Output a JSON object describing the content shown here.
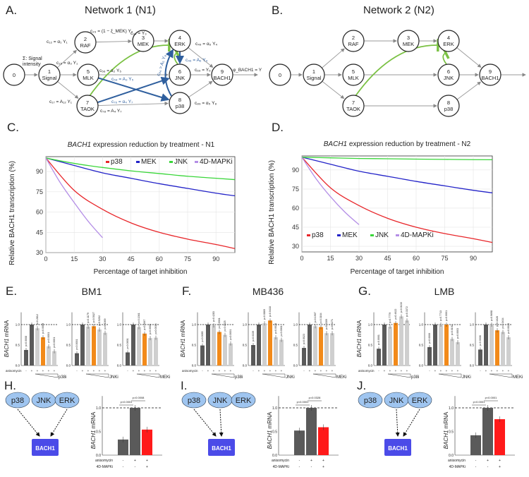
{
  "colors": {
    "p38": "#e8262a",
    "MEK": "#2323c8",
    "JNK": "#3ad63a",
    "4D-MAPKi": "#b48ee6",
    "activating_edge": "#2f5f9e",
    "inhibiting_edge": "#7ac143",
    "control_bar": "#5a5a5a",
    "inhibitor_bar": "#cfcfcf",
    "mid_dose_bar": "#f28a1a",
    "combo_bar": "#ff1a1a",
    "node_fill": "#9fc5f0",
    "bach1_box": "#4b4be8",
    "sig_p": "#e8262a",
    "nonsig_p": "#666666"
  },
  "panelA": {
    "label": "A.",
    "title": "Network 1 (N1)",
    "nodes": [
      {
        "id": "0",
        "name": ""
      },
      {
        "id": "1",
        "name": "Signal"
      },
      {
        "id": "2",
        "name": "RAF"
      },
      {
        "id": "3",
        "name": "MEK"
      },
      {
        "id": "4",
        "name": "ERK"
      },
      {
        "id": "5",
        "name": "MLK"
      },
      {
        "id": "6",
        "name": "JNK"
      },
      {
        "id": "7",
        "name": "TAOK"
      },
      {
        "id": "8",
        "name": "p38"
      },
      {
        "id": "9",
        "name": "BACH1"
      }
    ],
    "signal_label": [
      "Σ: Signal",
      "intensity"
    ],
    "edge_labels": {
      "c12": "c₁₂ = α₁ Y₁",
      "c23": "c₂₃ = (1 − ξ_MEK) Y₂",
      "c34": "c₃₄ = Y₃",
      "c49": "c₄₉ = α₆ Y₄",
      "c15": "c₁₅ = α₃ Y₁",
      "c56": "c₅₆ = α₂ Y₅",
      "c58": "c₅₈ = A₃ Y₅",
      "c46": "c₄₆ = A₆ Y₄",
      "c84": "c₈₄ = A₅ Y₈",
      "c69": "c₆₉ = Y₆",
      "phi": "φ_BACH1 = Y",
      "c17": "c₁₇ = A₁₂ Y₁",
      "c76": "c₇₆ = α₄ Y₇",
      "c78": "c₇₈ = A₄ Y₇",
      "c89": "c₈₉ = α₅ Y₈"
    }
  },
  "panelB": {
    "label": "B.",
    "title": "Network 2 (N2)"
  },
  "chart_data": [
    {
      "id": "C",
      "panel_label": "C.",
      "type": "line",
      "title": "BACH1 expression reduction by treatment - N1",
      "title_italic": "BACH1",
      "title_rest": " expression reduction by treatment - N1",
      "xlabel": "Percentage of target inhibition",
      "ylabel": "Relative BACH1 transcription (%)",
      "xlim": [
        0,
        100
      ],
      "ylim": [
        30,
        101
      ],
      "xticks": [
        "0",
        "15",
        "30",
        "45",
        "60",
        "75",
        "90"
      ],
      "yticks": [
        "30",
        "45",
        "60",
        "75",
        "90"
      ],
      "grid": true,
      "legend": "top-right",
      "series": [
        {
          "name": "p38",
          "x": [
            0,
            15,
            30,
            45,
            60,
            75,
            90,
            100
          ],
          "y": [
            100,
            76,
            62,
            52,
            45,
            40,
            36,
            33
          ]
        },
        {
          "name": "MEK",
          "x": [
            0,
            15,
            30,
            45,
            60,
            75,
            90,
            100
          ],
          "y": [
            100,
            94.5,
            89,
            85,
            81,
            77.5,
            74,
            72
          ]
        },
        {
          "name": "JNK",
          "x": [
            0,
            15,
            30,
            45,
            60,
            75,
            90,
            100
          ],
          "y": [
            100,
            96,
            93,
            90.5,
            88.5,
            86.5,
            85,
            84
          ]
        },
        {
          "name": "4D-MAPKi",
          "x": [
            0,
            7.5,
            15,
            22.5,
            30
          ],
          "y": [
            100,
            82,
            67,
            53,
            41
          ]
        }
      ]
    },
    {
      "id": "D",
      "panel_label": "D.",
      "type": "line",
      "title": "BACH1 expression reduction by treatment - N2",
      "title_italic": "BACH1",
      "title_rest": " expression reduction by treatment - N2",
      "xlabel": "Percentage of target inhibition",
      "ylabel": "Relative BACH1 transcription (%)",
      "xlim": [
        0,
        100
      ],
      "ylim": [
        25.6,
        101
      ],
      "xticks": [
        "0",
        "15",
        "30",
        "45",
        "60",
        "75",
        "90"
      ],
      "yticks": [
        "30",
        "45",
        "60",
        "75",
        "90"
      ],
      "grid": true,
      "legend": "bottom-left",
      "series": [
        {
          "name": "p38",
          "x": [
            0,
            15,
            30,
            45,
            60,
            75,
            90,
            100
          ],
          "y": [
            100,
            76,
            62,
            52,
            45,
            40,
            36,
            33
          ]
        },
        {
          "name": "MEK",
          "x": [
            0,
            15,
            30,
            45,
            60,
            75,
            90,
            100
          ],
          "y": [
            100,
            94.5,
            89,
            85,
            81,
            77.5,
            74,
            72
          ]
        },
        {
          "name": "JNK",
          "x": [
            0,
            15,
            30,
            45,
            60,
            75,
            90,
            100
          ],
          "y": [
            100,
            99.5,
            99,
            98.8,
            98.5,
            98.3,
            98.1,
            98
          ]
        },
        {
          "name": "4D-MAPKi",
          "x": [
            0,
            7.5,
            15,
            22.5,
            30
          ],
          "y": [
            100,
            83,
            69,
            57,
            47
          ]
        }
      ]
    }
  ],
  "bar_panels": [
    {
      "label": "E.",
      "cell_line": "BM1",
      "ylabel_italic": "BACH1",
      "ylabel_rest": " mRNA",
      "groups": [
        {
          "inhibitor": "p38i",
          "values": [
            0.38,
            1.0,
            0.91,
            0.69,
            0.47,
            0.35
          ],
          "pvalues": [
            "p=0.0008",
            "",
            "p=0.2812",
            "p=0.0069",
            "p<0.0001",
            "p<0.0001"
          ],
          "sig": [
            1,
            0,
            0,
            1,
            1,
            1
          ]
        },
        {
          "inhibitor": "JNKi",
          "values": [
            0.3,
            1.0,
            0.95,
            0.96,
            0.88,
            0.8
          ],
          "pvalues": [
            "p<0.0001",
            "",
            "p=0.1179",
            "p=0.5027",
            "p=0.5202",
            "p=0.1069"
          ],
          "sig": [
            1,
            0,
            0,
            0,
            0,
            0
          ]
        },
        {
          "inhibitor": "MEKi",
          "values": [
            0.32,
            1.0,
            0.94,
            0.78,
            0.67,
            0.68
          ],
          "pvalues": [
            "p<0.0001",
            "",
            "p=0.1361",
            "p=0.0067",
            "p=0.0008",
            "p=0.0013"
          ],
          "sig": [
            1,
            0,
            0,
            1,
            1,
            1
          ]
        }
      ]
    },
    {
      "label": "F.",
      "cell_line": "MB436",
      "ylabel_italic": "BACH1",
      "ylabel_rest": " mRNA",
      "groups": [
        {
          "inhibitor": "p38i",
          "values": [
            0.49,
            1.0,
            0.98,
            0.82,
            0.75,
            0.54
          ],
          "pvalues": [
            "p=0.0085",
            "",
            "p=0.4283",
            "p=0.0001",
            "p=0.0025",
            "p=0.0001"
          ],
          "sig": [
            1,
            0,
            0,
            1,
            1,
            1
          ]
        },
        {
          "inhibitor": "JNKi",
          "values": [
            0.5,
            1.0,
            1.03,
            1.1,
            0.69,
            0.63
          ],
          "pvalues": [
            "p=0.0339",
            "",
            "p=0.0869",
            "p=0.0418",
            "p=0.0026",
            "p=0.0061"
          ],
          "sig": [
            1,
            0,
            0,
            1,
            1,
            1
          ]
        },
        {
          "inhibitor": "MEKi",
          "values": [
            0.43,
            1.0,
            0.96,
            0.94,
            0.79,
            0.79
          ],
          "pvalues": [
            "p=0.0023",
            "",
            "p=0.1907",
            "p=0.3164",
            "p=0.0309",
            "p=0.0271"
          ],
          "sig": [
            1,
            0,
            0,
            0,
            1,
            1
          ]
        }
      ]
    },
    {
      "label": "G.",
      "cell_line": "LMB",
      "ylabel_italic": "BACH1",
      "ylabel_rest": " mRNA",
      "groups": [
        {
          "inhibitor": "p38i",
          "values": [
            0.41,
            1.0,
            0.95,
            1.04,
            1.2,
            1.1
          ],
          "pvalues": [
            "p=0.0001",
            "",
            "p=0.7779",
            "p=0.4622",
            "p=0.0130",
            "p=0.3372"
          ],
          "sig": [
            1,
            0,
            0,
            0,
            0,
            0
          ]
        },
        {
          "inhibitor": "JNKi",
          "values": [
            0.45,
            1.0,
            1.0,
            1.0,
            0.65,
            0.57
          ],
          "pvalues": [
            "p=0.0006",
            "",
            "p=0.7713",
            "p=0.0001",
            "p=0.0192",
            "p=0.0003"
          ],
          "sig": [
            1,
            0,
            0,
            1,
            1,
            1
          ]
        },
        {
          "inhibitor": "MEKi",
          "values": [
            0.39,
            1.0,
            1.0,
            0.86,
            0.82,
            0.69
          ],
          "pvalues": [
            "p=0.0008",
            "",
            "p=0.9698",
            "p=0.1028",
            "p=0.0434",
            "p=0.0023"
          ],
          "sig": [
            1,
            0,
            0,
            1,
            1,
            1
          ]
        }
      ]
    }
  ],
  "bar_common": {
    "yticks": [
      "0.0",
      "0.5",
      "1.0"
    ],
    "anisomycin_label": "anisomycin",
    "anisomycin_signs": [
      "-",
      "+",
      "+",
      "+",
      "+",
      "+"
    ]
  },
  "combo_panels": [
    {
      "label": "H.",
      "nodes": [
        "p38",
        "JNK",
        "ERK"
      ],
      "arrows_from": [
        0,
        2
      ],
      "target": "BACH1",
      "values": [
        0.33,
        1.0,
        0.54
      ],
      "p_ctrl": "p<0.0001",
      "p_combo": "p=0.0008"
    },
    {
      "label": "I.",
      "nodes": [
        "p38",
        "JNK",
        "ERK"
      ],
      "arrows_from": [
        0,
        1
      ],
      "target": "BACH1",
      "values": [
        0.52,
        1.0,
        0.59
      ],
      "p_ctrl": "p<0.0001",
      "p_combo": "p=0.0328"
    },
    {
      "label": "J.",
      "nodes": [
        "p38",
        "JNK",
        "ERK"
      ],
      "arrows_from": [
        1,
        2
      ],
      "target": "BACH1",
      "values": [
        0.42,
        1.0,
        0.76
      ],
      "p_ctrl": "p<0.0001",
      "p_combo": "p<0.0001"
    }
  ],
  "combo_common": {
    "ylabel_italic": "BACH1",
    "ylabel_rest": " mRNA",
    "yticks": [
      "0.0",
      "0.5",
      "1.0"
    ],
    "row1_label": "anisomycin",
    "row1_signs": [
      "-",
      "+",
      "+"
    ],
    "row2_label": "4D-MAPKi",
    "row2_signs": [
      "-",
      "-",
      "+"
    ]
  }
}
